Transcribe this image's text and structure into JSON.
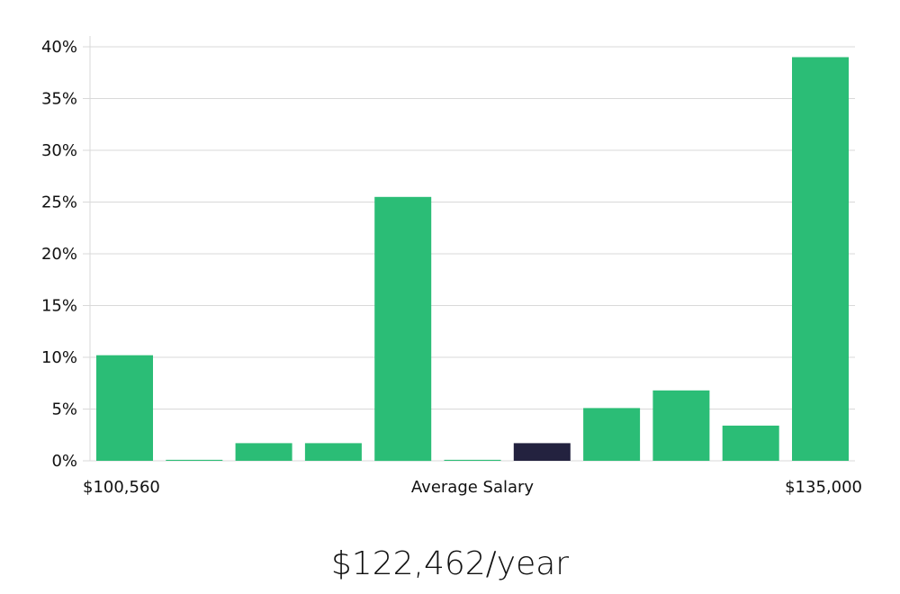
{
  "chart_data": {
    "type": "bar",
    "categories": [
      "1",
      "2",
      "3",
      "4",
      "5",
      "6",
      "7",
      "8",
      "9",
      "10",
      "11"
    ],
    "values": [
      10.2,
      0.1,
      1.7,
      1.7,
      25.5,
      0.1,
      1.7,
      5.1,
      6.8,
      3.4,
      39.0
    ],
    "highlight_index": 6,
    "ylim": [
      0,
      40
    ],
    "yticks": [
      "0%",
      "5%",
      "10%",
      "15%",
      "20%",
      "25%",
      "30%",
      "35%",
      "40%"
    ],
    "xlabel_left": "$100,560",
    "xlabel_center": "Average Salary",
    "xlabel_right": "$135,000",
    "grid": true,
    "colors": {
      "bar": "#2bbd76",
      "highlight": "#23223f",
      "grid": "#d9d9d9"
    }
  },
  "salary": "$122,462/year"
}
